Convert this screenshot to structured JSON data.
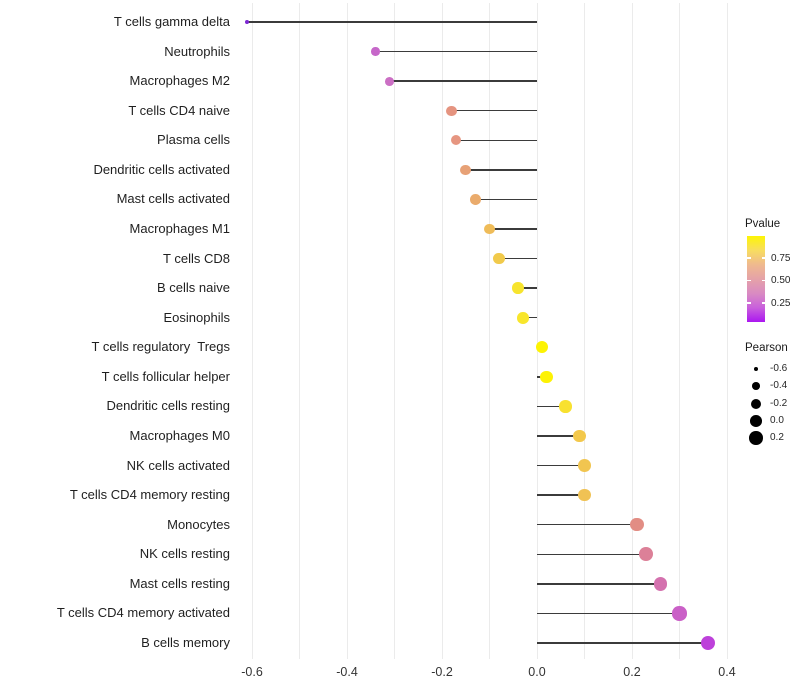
{
  "chart_data": {
    "type": "lollipop",
    "title": "",
    "xlabel": "",
    "ylabel": "",
    "x_axis": {
      "ticks": [
        {
          "label": "-0.6",
          "value": -0.6
        },
        {
          "label": "-0.4",
          "value": -0.4
        },
        {
          "label": "-0.2",
          "value": -0.2
        },
        {
          "label": "0.0",
          "value": 0.0
        },
        {
          "label": "0.2",
          "value": 0.2
        },
        {
          "label": "0.4",
          "value": 0.4
        }
      ],
      "range": [
        -0.636,
        0.437
      ],
      "grid_step": 0.1,
      "grid_color": "#ebebeb",
      "grid_on": true
    },
    "stem_color": "#3b3b3b",
    "points": [
      {
        "label": "T cells gamma delta",
        "pearson": -0.61,
        "dot_color": "#7d28d2"
      },
      {
        "label": "Neutrophils",
        "pearson": -0.34,
        "dot_color": "#c667c9"
      },
      {
        "label": "Macrophages M2",
        "pearson": -0.31,
        "dot_color": "#cb6fc4"
      },
      {
        "label": "T cells CD4 naive",
        "pearson": -0.18,
        "dot_color": "#e59480"
      },
      {
        "label": "Plasma cells",
        "pearson": -0.17,
        "dot_color": "#e69681"
      },
      {
        "label": "Dendritic cells activated",
        "pearson": -0.15,
        "dot_color": "#e7a176"
      },
      {
        "label": "Mast cells activated",
        "pearson": -0.13,
        "dot_color": "#eaab6c"
      },
      {
        "label": "Macrophages M1",
        "pearson": -0.1,
        "dot_color": "#efbc59"
      },
      {
        "label": "T cells CD8",
        "pearson": -0.08,
        "dot_color": "#f1ca4b"
      },
      {
        "label": "B cells naive",
        "pearson": -0.04,
        "dot_color": "#f7e42e"
      },
      {
        "label": "Eosinophils",
        "pearson": -0.03,
        "dot_color": "#f8e62c"
      },
      {
        "label": "T cells regulatory  Tregs",
        "pearson": 0.01,
        "dot_color": "#fdf303"
      },
      {
        "label": "T cells follicular helper",
        "pearson": 0.02,
        "dot_color": "#fdf204"
      },
      {
        "label": "Dendritic cells resting",
        "pearson": 0.06,
        "dot_color": "#f8e130"
      },
      {
        "label": "Macrophages M0",
        "pearson": 0.09,
        "dot_color": "#f3c84b"
      },
      {
        "label": "NK cells activated",
        "pearson": 0.1,
        "dot_color": "#f1c550"
      },
      {
        "label": "T cells CD4 memory resting",
        "pearson": 0.1,
        "dot_color": "#f0c254"
      },
      {
        "label": "Monocytes",
        "pearson": 0.21,
        "dot_color": "#e28d84"
      },
      {
        "label": "NK cells resting",
        "pearson": 0.23,
        "dot_color": "#dc8098"
      },
      {
        "label": "Mast cells resting",
        "pearson": 0.26,
        "dot_color": "#d471ae"
      },
      {
        "label": "T cells CD4 memory activated",
        "pearson": 0.3,
        "dot_color": "#ca60c7"
      },
      {
        "label": "B cells memory",
        "pearson": 0.36,
        "dot_color": "#bd41da"
      }
    ],
    "legend": {
      "pvalue": {
        "title": "Pvalue",
        "tick_labels": [
          "0.75",
          "0.50",
          "0.25"
        ],
        "gradient_top_to_bottom": [
          "#fdf504",
          "#f8dd60",
          "#efb98f",
          "#e5a2a8",
          "#d98bc2",
          "#c960dc",
          "#ab17f0"
        ]
      },
      "pearson": {
        "title": "Pearson",
        "dot_color": "#000000",
        "entries": [
          {
            "label": "-0.6",
            "value": -0.6
          },
          {
            "label": "-0.4",
            "value": -0.4
          },
          {
            "label": "-0.2",
            "value": -0.2
          },
          {
            "label": "0.0",
            "value": 0.0
          },
          {
            "label": "0.2",
            "value": 0.2
          }
        ]
      }
    }
  }
}
